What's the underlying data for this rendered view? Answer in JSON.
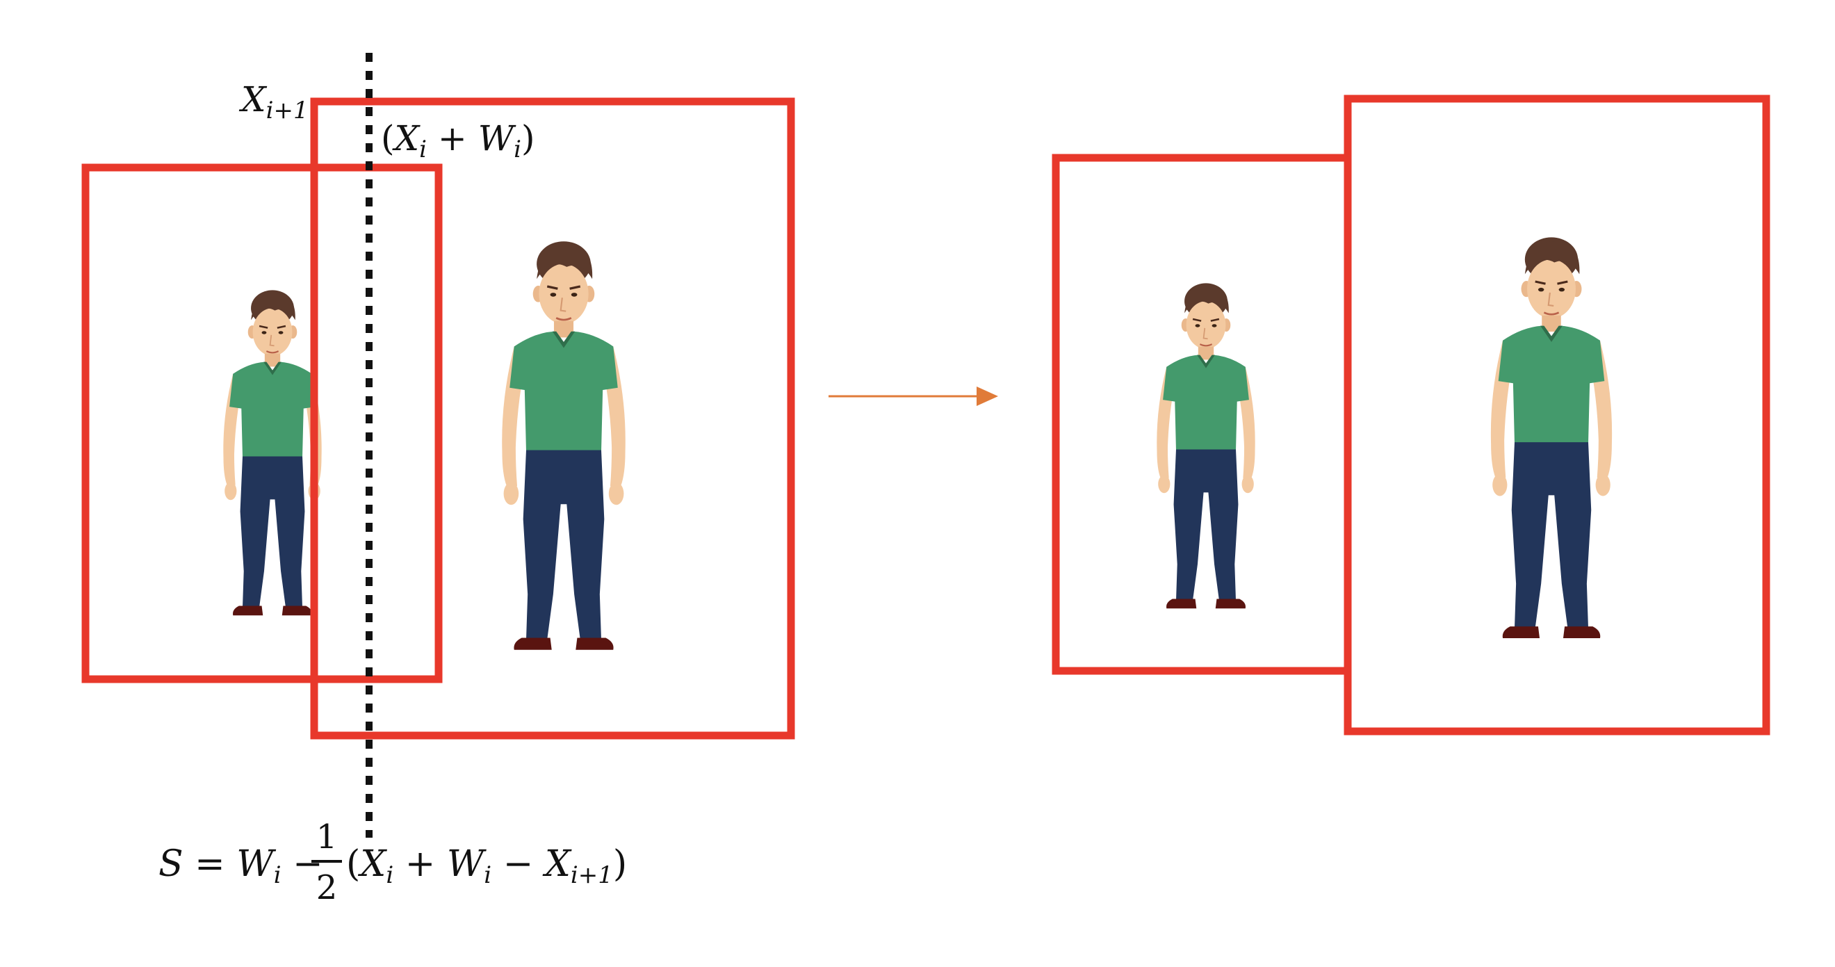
{
  "labels": {
    "x_next": {
      "base": "X",
      "sub": "i+1"
    },
    "x_plus_w": {
      "open": "(",
      "x": "X",
      "x_sub": "i",
      "op": " + ",
      "w": "W",
      "w_sub": "i",
      "close": ")"
    },
    "formula": {
      "lhs": "S",
      "eq": " = ",
      "w": "W",
      "w_sub": "i",
      "minus": " − ",
      "frac_num": "1",
      "frac_den": "2",
      "paren_open": "(",
      "x": "X",
      "x_sub": "i",
      "plus": " + ",
      "w2": "W",
      "w2_sub": "i",
      "minus2": " − ",
      "x2": "X",
      "x2_sub": "i+1",
      "paren_close": ")"
    }
  },
  "colors": {
    "box": "#e8382b",
    "arrow": "#e07b39",
    "shirt": "#449a6c",
    "shirt_shade": "#2f6e4b",
    "jeans": "#22355a",
    "skin": "#f3c9a0",
    "hair": "#5b3a2c",
    "shoe": "#5a1410",
    "dotted_line": "#111111"
  }
}
